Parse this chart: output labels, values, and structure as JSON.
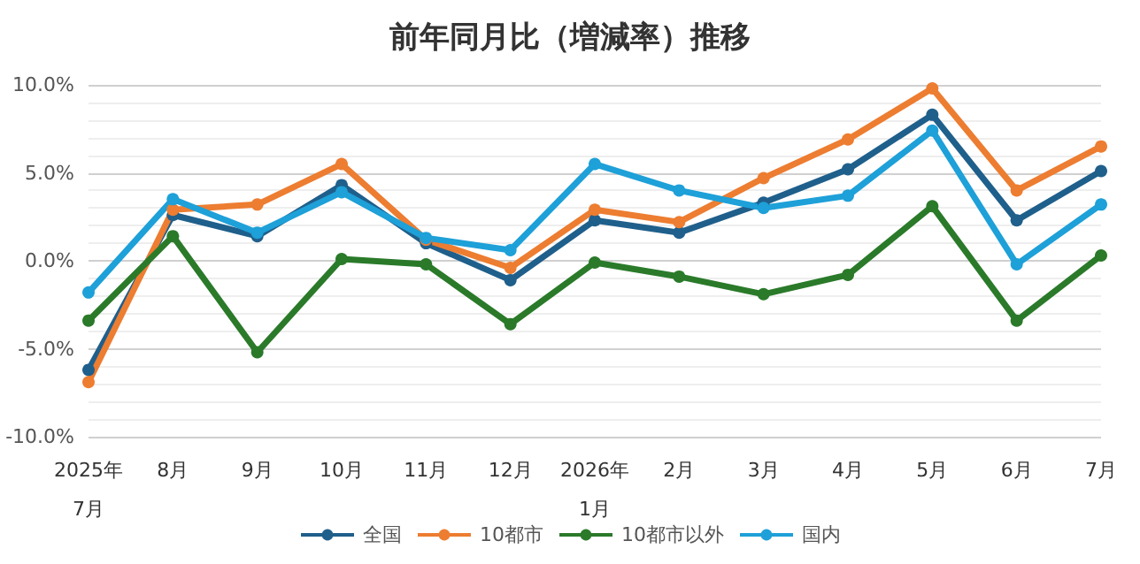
{
  "chart_data": {
    "type": "line",
    "title": "前年同月比（増減率）推移",
    "categories": [
      "2025年\n7月",
      "8月",
      "9月",
      "10月",
      "11月",
      "12月",
      "2026年\n1月",
      "2月",
      "3月",
      "4月",
      "5月",
      "6月",
      "7月"
    ],
    "series": [
      {
        "name": "全国",
        "color": "#1f5f8b",
        "values": [
          -6.2,
          2.6,
          1.4,
          4.3,
          1.0,
          -1.1,
          2.3,
          1.6,
          3.3,
          5.2,
          8.3,
          2.3,
          5.1
        ]
      },
      {
        "name": "10都市",
        "color": "#ed7d31",
        "values": [
          -6.9,
          2.9,
          3.2,
          5.5,
          1.2,
          -0.4,
          2.9,
          2.2,
          4.7,
          6.9,
          9.8,
          4.0,
          6.5
        ]
      },
      {
        "name": "10都市以外",
        "color": "#2a7a2a",
        "values": [
          -3.4,
          1.4,
          -5.2,
          0.1,
          -0.2,
          -3.6,
          -0.1,
          -0.9,
          -1.9,
          -0.8,
          3.1,
          -3.4,
          0.3
        ]
      },
      {
        "name": "国内",
        "color": "#1ea0d8",
        "values": [
          -1.8,
          3.5,
          1.6,
          3.9,
          1.3,
          0.6,
          5.5,
          4.0,
          3.0,
          3.7,
          7.4,
          -0.2,
          3.2
        ]
      }
    ],
    "ylim": [
      -10,
      10
    ],
    "yticks": [
      {
        "value": -10,
        "label": "-10.0%"
      },
      {
        "value": -5,
        "label": "-5.0%"
      },
      {
        "value": 0,
        "label": "0.0%"
      },
      {
        "value": 5,
        "label": "5.0%"
      },
      {
        "value": 10,
        "label": "10.0%"
      }
    ],
    "grid": true,
    "legend": "bottom",
    "marker": "circle",
    "line_style": "solid"
  }
}
